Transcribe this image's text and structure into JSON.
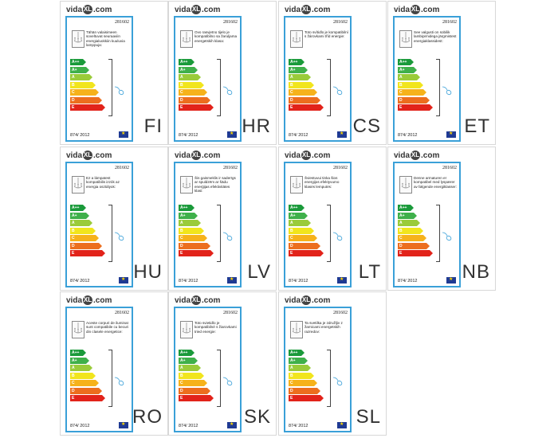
{
  "brand": {
    "pre": "vida",
    "mid": "XL",
    "post": ".com"
  },
  "bar_classes": [
    {
      "label": "A++",
      "color": "#1a9a3a"
    },
    {
      "label": "A+",
      "color": "#3fb04a"
    },
    {
      "label": "A",
      "color": "#9acb3a"
    },
    {
      "label": "B",
      "color": "#f1e51d"
    },
    {
      "label": "C",
      "color": "#f6b21b"
    },
    {
      "label": "D",
      "color": "#ec6e1e"
    },
    {
      "label": "E",
      "color": "#e2231a"
    }
  ],
  "labels": [
    {
      "lang": "FI",
      "code": "281602",
      "regulation": "874/ 2012",
      "text": "Tähän valaisimeen soveltuvat seuraaviin energialuokkiin kuuluvia lamppuja:"
    },
    {
      "lang": "HR",
      "code": "281602",
      "regulation": "874/ 2012",
      "text": "Ovo rasvjetno tijelo je kompatibilno sa žaruljama energetskih klasa:"
    },
    {
      "lang": "CS",
      "code": "281602",
      "regulation": "874/ 2012",
      "text": "Toto svítidlo je kompatibilní s žárovkami tříd energie:"
    },
    {
      "lang": "ET",
      "code": "281602",
      "regulation": "874/ 2012",
      "text": "See valgusti on sobilik lambipirnidega järgmistest energiaklassidest:"
    },
    {
      "lang": "HU",
      "code": "281602",
      "regulation": "874/ 2012",
      "text": "Ez a lámpatest kompatibilis izzók az energia osztályok:"
    },
    {
      "lang": "LV",
      "code": "281602",
      "regulation": "874/ 2012",
      "text": "Šis gaismeklis ir saderīgs ar spuldzēm ar šādu enerģijas efektivitātes klasi:"
    },
    {
      "lang": "LT",
      "code": "281602",
      "regulation": "874/ 2012",
      "text": "Šviestuvui tinka šios energijos efektyvumo klasės lemputės:"
    },
    {
      "lang": "NB",
      "code": "281602",
      "regulation": "874/ 2012",
      "text": "Denne armaturen er kompatibel med lyspærer av følgende energiklasser:"
    },
    {
      "lang": "RO",
      "code": "281602",
      "regulation": "874/ 2012",
      "text": "Aceste corpuri de iluminat sunt compatibile cu becuri din clasele energetice:"
    },
    {
      "lang": "SK",
      "code": "281602",
      "regulation": "874/ 2012",
      "text": "Toto svietidlo je kompatibilné s žiarovkami tried energie:"
    },
    {
      "lang": "SL",
      "code": "281602",
      "regulation": "874/ 2012",
      "text": "Ta svetilka je združljiv z žarnicami energetskih razredov:"
    }
  ]
}
